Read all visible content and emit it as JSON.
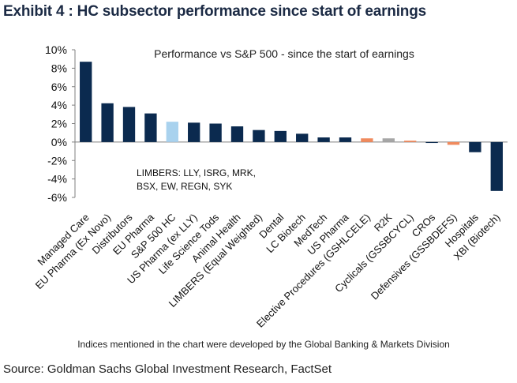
{
  "exhibit_title": "Exhibit 4 : HC subsector performance since start of earnings",
  "source": "Source: Goldman Sachs Global Investment Research, FactSet",
  "colors": {
    "navy": "#0b2a4f",
    "light_blue": "#a9d2ee",
    "orange": "#f08a5d",
    "gray": "#a6a6a6"
  },
  "chart_data": {
    "type": "bar",
    "title": "Performance  vs  S&P 500  -  since the start of earnings",
    "xlabel": "",
    "ylabel": "",
    "ylim": [
      -6,
      10
    ],
    "yticks": [
      10,
      8,
      6,
      4,
      2,
      0,
      -2,
      -4,
      -6
    ],
    "ytick_labels": [
      "10%",
      "8%",
      "6%",
      "4%",
      "2%",
      "0%",
      "-2%",
      "-4%",
      "-6%"
    ],
    "grid": false,
    "legend": null,
    "annotation_lines": [
      "LIMBERS:  LLY,  ISRG,  MRK,",
      "BSX,  EW,  REGN,  SYK"
    ],
    "footnote": "Indices mentioned in the chart were developed by the Global Banking & Markets Division",
    "categories": [
      "Managed Care",
      "EU Pharma (Ex Novo)",
      "Distributors",
      "EU Pharma",
      "S&P 500 HC",
      "US Pharma (ex LLY)",
      "Life Science Tods",
      "Animal Health",
      "LIMBERS (Equal Weighted)",
      "Dental",
      "LC Biotech",
      "MedTech",
      "US Pharma",
      "Elective Procedures (GSHLCELE)",
      "R2K",
      "Cyclicals (GSSBCYCL)",
      "CROs",
      "Defensives (GSSBDEFS)",
      "Hospitals",
      "XBI (Biotech)"
    ],
    "values": [
      8.7,
      4.2,
      3.8,
      3.1,
      2.2,
      2.1,
      2.0,
      1.7,
      1.3,
      1.2,
      0.9,
      0.5,
      0.5,
      0.4,
      0.4,
      0.15,
      -0.1,
      -0.3,
      -1.1,
      -5.3
    ],
    "bar_colors": [
      "navy",
      "navy",
      "navy",
      "navy",
      "light_blue",
      "navy",
      "navy",
      "navy",
      "navy",
      "navy",
      "navy",
      "navy",
      "navy",
      "orange",
      "gray",
      "orange",
      "navy",
      "orange",
      "navy",
      "navy"
    ]
  }
}
